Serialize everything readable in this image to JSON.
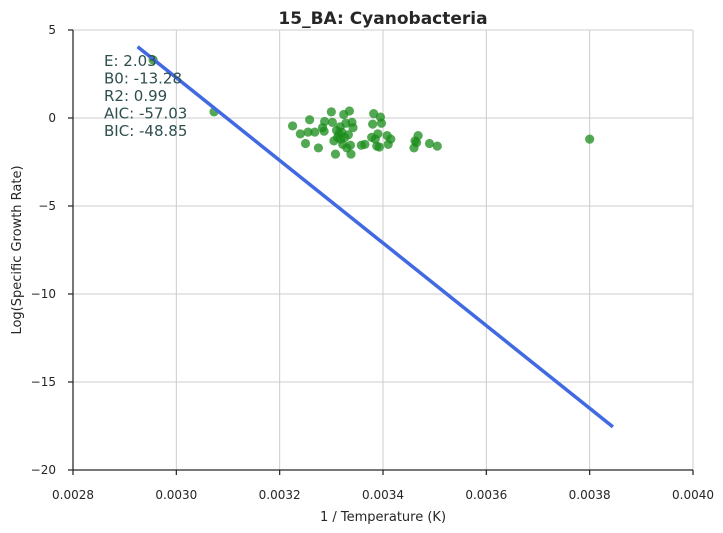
{
  "chart_data": {
    "type": "scatter",
    "title": "15_BA: Cyanobacteria",
    "xlabel": "1 / Temperature (K)",
    "ylabel": "Log(Specific Growth Rate)",
    "xlim": [
      0.0028,
      0.004
    ],
    "ylim": [
      -20,
      5
    ],
    "xticks": [
      0.0028,
      0.003,
      0.0032,
      0.0034,
      0.0036,
      0.0038,
      0.004
    ],
    "xtick_labels": [
      "0.0028",
      "0.0030",
      "0.0032",
      "0.0034",
      "0.0036",
      "0.0038",
      "0.0040"
    ],
    "yticks": [
      5,
      0,
      -5,
      -10,
      -15,
      -20
    ],
    "ytick_labels": [
      "5",
      "0",
      "−5",
      "−10",
      "−15",
      "−20"
    ],
    "grid": true,
    "annotations": [
      "E:  2.03",
      "B0:  -13.28",
      "R2:  0.99",
      "AIC: -57.03",
      "BIC: -48.85"
    ],
    "colors": {
      "points": "#1a8c1a",
      "fit_line": "#4169e1",
      "annotation": "#2f4f4f"
    },
    "fit_line": {
      "x": [
        0.002925,
        0.003845
      ],
      "y": [
        4.05,
        -17.55
      ]
    },
    "points": [
      {
        "x": 0.002955,
        "y": 3.3
      },
      {
        "x": 0.003073,
        "y": 0.35
      },
      {
        "x": 0.003225,
        "y": -0.45
      },
      {
        "x": 0.00324,
        "y": -0.9
      },
      {
        "x": 0.00325,
        "y": -1.45
      },
      {
        "x": 0.003255,
        "y": -0.8
      },
      {
        "x": 0.003258,
        "y": -0.1
      },
      {
        "x": 0.003268,
        "y": -0.8
      },
      {
        "x": 0.003275,
        "y": -1.7
      },
      {
        "x": 0.003283,
        "y": -0.55
      },
      {
        "x": 0.003286,
        "y": -0.75
      },
      {
        "x": 0.003287,
        "y": -0.2
      },
      {
        "x": 0.0033,
        "y": 0.35
      },
      {
        "x": 0.003302,
        "y": -0.25
      },
      {
        "x": 0.003305,
        "y": -1.3
      },
      {
        "x": 0.003308,
        "y": -2.05
      },
      {
        "x": 0.00331,
        "y": -0.7
      },
      {
        "x": 0.003312,
        "y": -1.1
      },
      {
        "x": 0.003315,
        "y": -0.9
      },
      {
        "x": 0.003317,
        "y": -0.5
      },
      {
        "x": 0.003318,
        "y": -1.2
      },
      {
        "x": 0.00332,
        "y": -0.8
      },
      {
        "x": 0.003322,
        "y": -1.5
      },
      {
        "x": 0.003324,
        "y": 0.2
      },
      {
        "x": 0.003326,
        "y": -1.1
      },
      {
        "x": 0.003328,
        "y": -0.3
      },
      {
        "x": 0.00333,
        "y": -1.7
      },
      {
        "x": 0.003333,
        "y": -0.95
      },
      {
        "x": 0.003335,
        "y": 0.4
      },
      {
        "x": 0.003337,
        "y": -1.55
      },
      {
        "x": 0.003338,
        "y": -2.05
      },
      {
        "x": 0.00334,
        "y": -0.25
      },
      {
        "x": 0.003342,
        "y": -0.55
      },
      {
        "x": 0.003358,
        "y": -1.55
      },
      {
        "x": 0.003365,
        "y": -1.5
      },
      {
        "x": 0.003378,
        "y": -1.1
      },
      {
        "x": 0.00338,
        "y": -0.35
      },
      {
        "x": 0.003382,
        "y": 0.25
      },
      {
        "x": 0.003385,
        "y": -1.2
      },
      {
        "x": 0.003388,
        "y": -1.6
      },
      {
        "x": 0.00339,
        "y": -0.9
      },
      {
        "x": 0.003393,
        "y": -1.65
      },
      {
        "x": 0.003395,
        "y": 0.05
      },
      {
        "x": 0.003397,
        "y": -0.3
      },
      {
        "x": 0.003408,
        "y": -1.0
      },
      {
        "x": 0.00341,
        "y": -1.5
      },
      {
        "x": 0.003415,
        "y": -1.2
      },
      {
        "x": 0.00346,
        "y": -1.7
      },
      {
        "x": 0.003462,
        "y": -1.3
      },
      {
        "x": 0.003465,
        "y": -1.4
      },
      {
        "x": 0.003468,
        "y": -1.0
      },
      {
        "x": 0.00349,
        "y": -1.45
      },
      {
        "x": 0.003505,
        "y": -1.6
      },
      {
        "x": 0.0038,
        "y": -1.2
      }
    ]
  }
}
